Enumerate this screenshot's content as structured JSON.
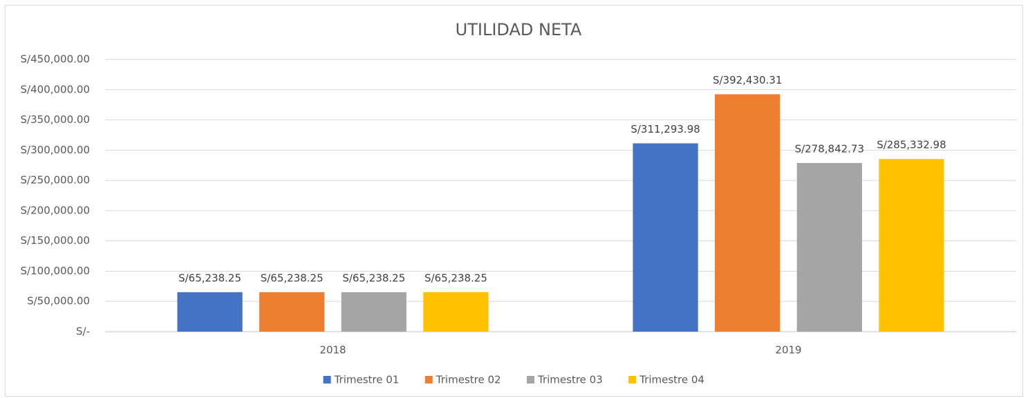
{
  "chart_data": {
    "type": "bar",
    "title": "UTILIDAD NETA",
    "categories": [
      "2018",
      "2019"
    ],
    "series": [
      {
        "name": "Trimestre 01",
        "color": "#4472c4",
        "values": [
          65238.25,
          311293.98
        ],
        "value_labels": [
          "S/65,238.25",
          "S/311,293.98"
        ]
      },
      {
        "name": "Trimestre 02",
        "color": "#ed7d31",
        "values": [
          65238.25,
          392430.31
        ],
        "value_labels": [
          "S/65,238.25",
          "S/392,430.31"
        ]
      },
      {
        "name": "Trimestre 03",
        "color": "#a5a5a5",
        "values": [
          65238.25,
          278842.73
        ],
        "value_labels": [
          "S/65,238.25",
          "S/278,842.73"
        ]
      },
      {
        "name": "Trimestre 04",
        "color": "#ffc000",
        "values": [
          65238.25,
          285332.98
        ],
        "value_labels": [
          "S/65,238.25",
          "S/285,332.98"
        ]
      }
    ],
    "ylim": [
      0,
      450000
    ],
    "yticks": [
      {
        "value": 0,
        "label": "S/-"
      },
      {
        "value": 50000,
        "label": "S/50,000.00"
      },
      {
        "value": 100000,
        "label": "S/100,000.00"
      },
      {
        "value": 150000,
        "label": "S/150,000.00"
      },
      {
        "value": 200000,
        "label": "S/200,000.00"
      },
      {
        "value": 250000,
        "label": "S/250,000.00"
      },
      {
        "value": 300000,
        "label": "S/300,000.00"
      },
      {
        "value": 350000,
        "label": "S/350,000.00"
      },
      {
        "value": 400000,
        "label": "S/400,000.00"
      },
      {
        "value": 450000,
        "label": "S/450,000.00"
      }
    ],
    "grid": true,
    "legend": "bottom"
  }
}
